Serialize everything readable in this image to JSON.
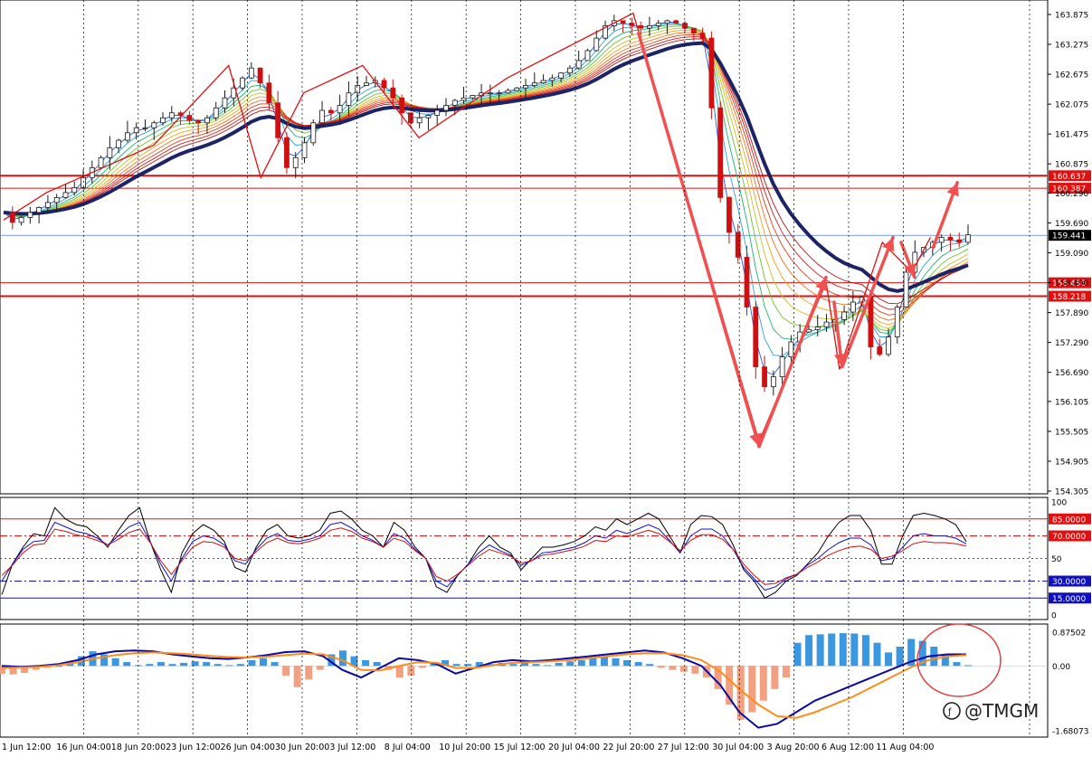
{
  "chart_data": [
    {
      "type": "candlestick",
      "panel": "price",
      "ylim": [
        154.305,
        163.875
      ],
      "y_ticks": [
        "163.875",
        "163.275",
        "162.675",
        "162.075",
        "161.475",
        "160.875",
        "160.290",
        "159.690",
        "159.090",
        "158.490",
        "157.890",
        "157.290",
        "156.690",
        "156.105",
        "155.505",
        "154.905",
        "154.305"
      ],
      "price_marker": "159.441",
      "price_marker_value": 159.441,
      "levels": [
        {
          "label": "160.637",
          "value": 160.637,
          "color": "#e01010",
          "width": 2
        },
        {
          "label": "160.387",
          "value": 160.387,
          "color": "#e01010",
          "width": 1
        },
        {
          "label": "158.488",
          "value": 158.488,
          "color": "#e01010",
          "width": 1
        },
        {
          "label": "158.218",
          "value": 158.218,
          "color": "#e01010",
          "width": 2
        }
      ],
      "close_series_approx": [
        159.9,
        159.7,
        159.8,
        159.9,
        160.0,
        160.1,
        160.2,
        160.3,
        160.4,
        160.6,
        160.8,
        161.0,
        161.2,
        161.35,
        161.5,
        161.6,
        161.6,
        161.7,
        161.8,
        161.9,
        161.85,
        161.75,
        161.7,
        161.8,
        162.0,
        162.2,
        162.4,
        162.6,
        162.8,
        162.5,
        162.1,
        161.4,
        160.8,
        161.0,
        161.3,
        161.7,
        161.95,
        161.9,
        162.05,
        162.3,
        162.45,
        162.5,
        162.55,
        162.4,
        162.2,
        161.9,
        161.7,
        161.8,
        161.85,
        161.95,
        162.05,
        162.15,
        162.2,
        162.25,
        162.3,
        162.3,
        162.3,
        162.35,
        162.4,
        162.45,
        162.5,
        162.55,
        162.6,
        162.7,
        162.8,
        162.95,
        163.15,
        163.4,
        163.65,
        163.75,
        163.7,
        163.65,
        163.6,
        163.65,
        163.7,
        163.75,
        163.7,
        163.6,
        163.5,
        163.4,
        162.0,
        160.2,
        159.5,
        159.0,
        158.0,
        156.8,
        156.4,
        156.6,
        157.0,
        157.3,
        157.5,
        157.55,
        157.6,
        157.7,
        157.75,
        157.9,
        158.1,
        158.2,
        157.2,
        157.05,
        157.4,
        158.0,
        158.7,
        159.1,
        159.2,
        159.3,
        159.4,
        159.35,
        159.3,
        159.45
      ],
      "zigzag_points": [
        [
          0,
          159.75
        ],
        [
          1.6,
          160.3
        ],
        [
          5.6,
          161.25
        ],
        [
          8.4,
          162.85
        ],
        [
          9.6,
          160.6
        ],
        [
          11.2,
          162.3
        ],
        [
          13.4,
          162.85
        ],
        [
          15.5,
          161.4
        ],
        [
          18.8,
          162.6
        ],
        [
          23.5,
          163.9
        ],
        [
          28.2,
          155.3
        ],
        [
          30.7,
          158.5
        ],
        [
          31.2,
          156.75
        ],
        [
          32.8,
          159.3
        ],
        [
          33.9,
          158.7
        ],
        [
          34.6,
          159.4
        ]
      ],
      "forecast_arrows": [
        {
          "from": [
            23.7,
            163.5
          ],
          "to": [
            28.2,
            155.2
          ]
        },
        {
          "from": [
            28.2,
            155.2
          ],
          "to": [
            30.7,
            158.6
          ]
        },
        {
          "from": [
            31.0,
            158.1
          ],
          "to": [
            31.3,
            156.8
          ]
        },
        {
          "from": [
            31.3,
            156.8
          ],
          "to": [
            33.2,
            159.4
          ]
        },
        {
          "from": [
            33.5,
            159.3
          ],
          "to": [
            34.0,
            158.6
          ]
        },
        {
          "from": [
            34.7,
            159.2
          ],
          "to": [
            35.6,
            160.5
          ]
        }
      ],
      "x_labels": [
        "1 Jun 12:00",
        "16 Jun 04:00",
        "18 Jun 20:00",
        "23 Jun 12:00",
        "26 Jun 04:00",
        "30 Jun 20:00",
        "3 Jul 12:00",
        "8 Jul 04:00",
        "10 Jul 20:00",
        "15 Jul 12:00",
        "20 Jul 04:00",
        "22 Jul 20:00",
        "27 Jul 12:00",
        "30 Jul 04:00",
        "3 Aug 20:00",
        "6 Aug 12:00",
        "11 Aug 04:00"
      ],
      "colors": {
        "up": "#1a1a1a",
        "down": "#d01010",
        "grid": "#000000",
        "ema_slow": "#1d2466"
      }
    },
    {
      "type": "line",
      "panel": "oscillator",
      "ylim": [
        0,
        100
      ],
      "y_ticks": [
        "100",
        "50",
        "0"
      ],
      "levels": [
        {
          "label": "85.0000",
          "value": 85,
          "color": "#e01010",
          "style": "solid"
        },
        {
          "label": "70.0000",
          "value": 70,
          "color": "#e01010",
          "style": "dashdot"
        },
        {
          "value": 50,
          "color": "#555555",
          "style": "dotted"
        },
        {
          "label": "30.0000",
          "value": 30,
          "color": "#1010c0",
          "style": "dashdot"
        },
        {
          "label": "15.0000",
          "value": 15,
          "color": "#1010c0",
          "style": "solid"
        }
      ],
      "series": [
        {
          "color": "#000000",
          "values": [
            18,
            45,
            60,
            72,
            70,
            95,
            85,
            80,
            78,
            70,
            60,
            75,
            88,
            95,
            65,
            40,
            20,
            55,
            72,
            80,
            75,
            65,
            42,
            38,
            60,
            75,
            80,
            70,
            68,
            70,
            75,
            90,
            92,
            85,
            75,
            70,
            60,
            82,
            75,
            60,
            50,
            25,
            20,
            35,
            45,
            60,
            70,
            60,
            55,
            40,
            50,
            60,
            60,
            62,
            65,
            70,
            78,
            75,
            85,
            80,
            85,
            90,
            85,
            70,
            55,
            80,
            88,
            87,
            80,
            62,
            40,
            30,
            15,
            20,
            30,
            35,
            45,
            55,
            70,
            82,
            88,
            88,
            75,
            45,
            45,
            70,
            88,
            90,
            88,
            85,
            80,
            65
          ]
        },
        {
          "color": "#1010c0",
          "values": [
            30,
            45,
            58,
            65,
            66,
            82,
            78,
            74,
            72,
            68,
            62,
            70,
            78,
            82,
            65,
            45,
            30,
            50,
            65,
            70,
            68,
            62,
            48,
            45,
            58,
            68,
            72,
            66,
            65,
            67,
            70,
            80,
            82,
            77,
            70,
            66,
            60,
            72,
            68,
            58,
            50,
            30,
            25,
            35,
            45,
            55,
            62,
            57,
            53,
            44,
            48,
            55,
            56,
            58,
            60,
            64,
            70,
            68,
            75,
            72,
            76,
            80,
            76,
            66,
            55,
            70,
            76,
            76,
            70,
            58,
            42,
            32,
            22,
            25,
            32,
            36,
            44,
            50,
            58,
            64,
            68,
            68,
            62,
            48,
            50,
            60,
            70,
            72,
            70,
            70,
            68,
            63
          ]
        },
        {
          "color": "#d01010",
          "values": [
            35,
            44,
            55,
            62,
            63,
            76,
            74,
            71,
            69,
            66,
            62,
            67,
            73,
            76,
            64,
            48,
            36,
            48,
            60,
            65,
            64,
            60,
            50,
            48,
            56,
            64,
            68,
            64,
            63,
            65,
            68,
            75,
            77,
            74,
            68,
            65,
            60,
            68,
            65,
            57,
            50,
            34,
            30,
            36,
            44,
            52,
            58,
            55,
            52,
            46,
            48,
            53,
            54,
            56,
            58,
            61,
            66,
            65,
            70,
            69,
            72,
            75,
            72,
            65,
            57,
            66,
            71,
            71,
            67,
            58,
            45,
            35,
            27,
            28,
            33,
            36,
            42,
            47,
            53,
            57,
            60,
            61,
            58,
            50,
            52,
            57,
            63,
            65,
            64,
            64,
            63,
            61
          ]
        }
      ]
    },
    {
      "type": "bar",
      "panel": "macd",
      "ylim": [
        -1.68073,
        0.87502
      ],
      "y_ticks": [
        "0.87502",
        "0.00",
        "-1.68073"
      ],
      "colors": {
        "positive": "#3a97e0",
        "negative": "#f3a080",
        "main": "#0a0aa0",
        "signal": "#ff8c1a"
      },
      "histogram": [
        -0.2,
        -0.22,
        -0.18,
        -0.1,
        -0.05,
        0.0,
        0.1,
        0.25,
        0.38,
        0.3,
        0.2,
        0.1,
        0.02,
        0.05,
        0.1,
        0.05,
        0.08,
        0.12,
        0.1,
        0.05,
        0.02,
        0.05,
        0.15,
        0.2,
        0.1,
        -0.25,
        -0.55,
        -0.35,
        -0.1,
        0.3,
        0.4,
        0.25,
        0.15,
        0.1,
        -0.1,
        -0.3,
        -0.25,
        -0.05,
        0.1,
        0.15,
        0.05,
        0.05,
        0.1,
        0.05,
        0.08,
        0.05,
        0.1,
        0.05,
        0.02,
        0.08,
        0.12,
        0.15,
        0.2,
        0.25,
        0.2,
        0.15,
        0.1,
        0.05,
        -0.05,
        -0.1,
        -0.15,
        -0.2,
        -0.3,
        -0.6,
        -1.0,
        -1.4,
        -1.2,
        -0.9,
        -0.6,
        -0.3,
        0.6,
        0.8,
        0.82,
        0.84,
        0.85,
        0.84,
        0.8,
        0.6,
        0.35,
        0.5,
        0.7,
        0.65,
        0.5,
        0.3,
        0.1,
        0.02
      ],
      "series": [
        {
          "color": "#0a0aa0",
          "values": [
            0.0,
            -0.02,
            0.0,
            0.05,
            0.15,
            0.3,
            0.38,
            0.4,
            0.38,
            0.3,
            0.25,
            0.2,
            0.18,
            0.22,
            0.28,
            0.36,
            0.38,
            0.25,
            -0.1,
            -0.3,
            -0.05,
            0.2,
            0.15,
            0.05,
            -0.2,
            -0.05,
            0.1,
            0.15,
            0.12,
            0.15,
            0.2,
            0.25,
            0.3,
            0.35,
            0.4,
            0.35,
            0.2,
            0.0,
            -0.5,
            -1.2,
            -1.6,
            -1.5,
            -1.2,
            -0.9,
            -0.7,
            -0.5,
            -0.3,
            -0.1,
            0.1,
            0.25,
            0.3,
            0.3
          ]
        },
        {
          "color": "#ff8c1a",
          "values": [
            -0.05,
            -0.04,
            -0.02,
            0.02,
            0.1,
            0.2,
            0.28,
            0.33,
            0.35,
            0.33,
            0.3,
            0.26,
            0.23,
            0.22,
            0.24,
            0.28,
            0.32,
            0.3,
            0.15,
            -0.1,
            -0.12,
            0.0,
            0.1,
            0.08,
            -0.05,
            -0.05,
            0.02,
            0.08,
            0.1,
            0.12,
            0.15,
            0.2,
            0.25,
            0.3,
            0.33,
            0.33,
            0.28,
            0.15,
            -0.15,
            -0.6,
            -1.0,
            -1.3,
            -1.35,
            -1.2,
            -1.0,
            -0.8,
            -0.55,
            -0.3,
            -0.05,
            0.15,
            0.25,
            0.28
          ]
        }
      ]
    }
  ],
  "watermark": "@TMGM"
}
